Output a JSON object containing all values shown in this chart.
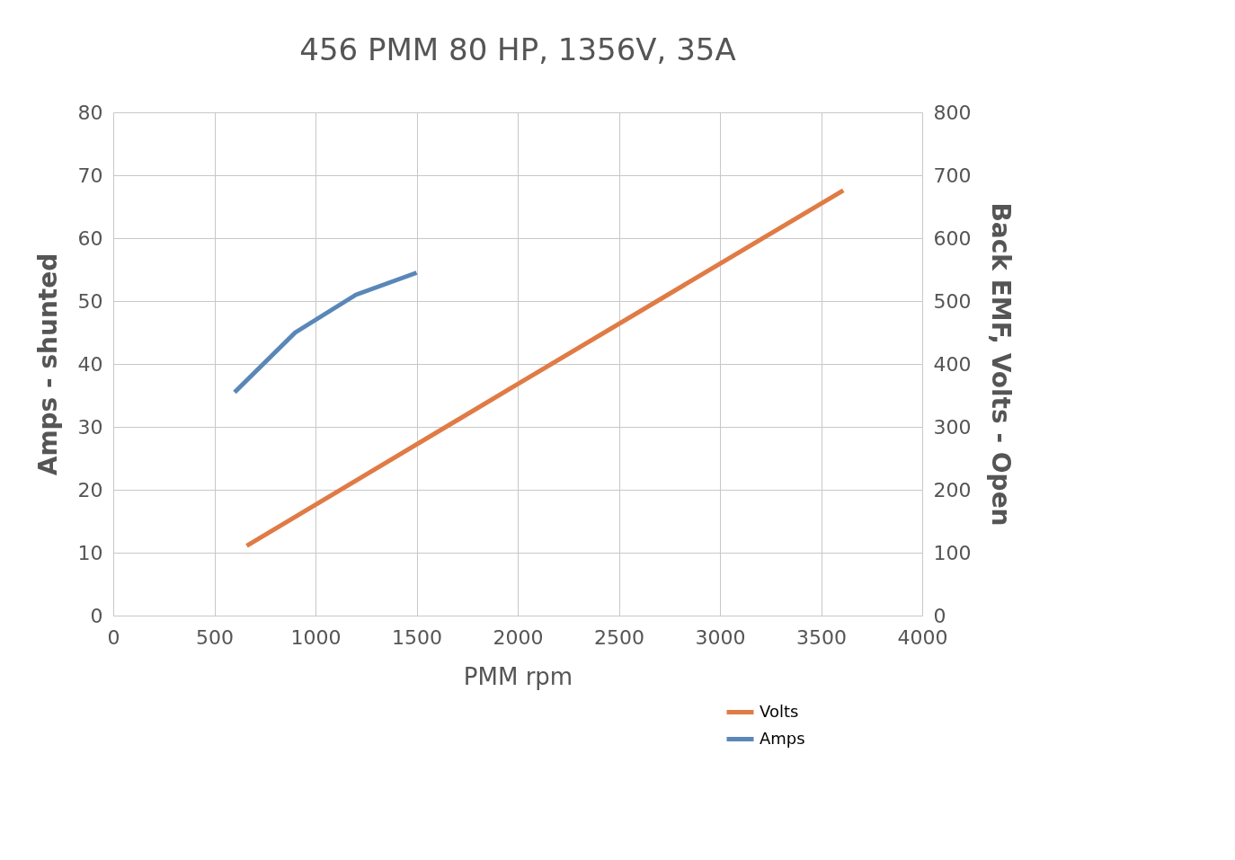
{
  "chart_data": {
    "type": "line",
    "title": "456 PMM 80 HP, 1356V, 35A",
    "xlabel": "PMM rpm",
    "ylabel": "Amps - shunted",
    "y2label": "Back EMF, Volts - Open",
    "xlim": [
      0,
      4000
    ],
    "xticks": [
      0,
      500,
      1000,
      1500,
      2000,
      2500,
      3000,
      3500,
      4000
    ],
    "ylim": [
      0,
      80
    ],
    "yticks": [
      0,
      10,
      20,
      30,
      40,
      50,
      60,
      70,
      80
    ],
    "y2lim": [
      0,
      800
    ],
    "y2ticks": [
      0,
      100,
      200,
      300,
      400,
      500,
      600,
      700,
      800
    ],
    "grid": true,
    "legend": "bottom right",
    "marker": "none",
    "line_style": "solid",
    "series": [
      {
        "name": "Volts",
        "color": "#e07b45",
        "axis": "y2",
        "x": [
          660,
          2000,
          3610
        ],
        "values": [
          111,
          368,
          676
        ]
      },
      {
        "name": "Amps",
        "color": "#5a87b8",
        "x": [
          600,
          900,
          1200,
          1500
        ],
        "values": [
          35.5,
          45,
          51,
          54.5
        ]
      }
    ]
  }
}
